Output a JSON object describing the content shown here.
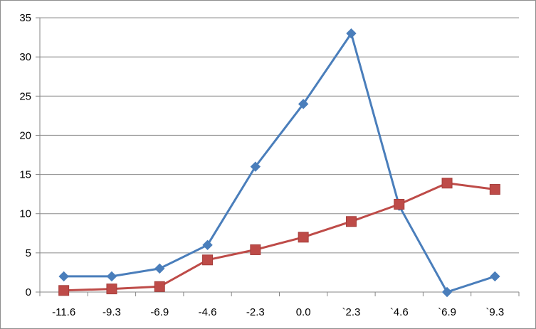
{
  "chart_data": {
    "type": "line",
    "title": "",
    "xlabel": "",
    "ylabel": "",
    "categories": [
      "-11.6",
      "-9.3",
      "-6.9",
      "-4.6",
      "-2.3",
      "0.0",
      "`2.3",
      "`4.6",
      "`6.9",
      "`9.3"
    ],
    "ylim": [
      0,
      35
    ],
    "yticks": [
      "0",
      "5",
      "10",
      "15",
      "20",
      "25",
      "30",
      "35"
    ],
    "grid": true,
    "legend": "none",
    "series": [
      {
        "color": "#4a7ebb",
        "marker": "diamond",
        "values": [
          2,
          2,
          3,
          6,
          16,
          24,
          33,
          11,
          0,
          2
        ]
      },
      {
        "color": "#be4b48",
        "marker": "square",
        "values": [
          0.2,
          0.4,
          0.7,
          4.1,
          5.4,
          7.0,
          9.0,
          11.2,
          13.9,
          13.1
        ]
      }
    ]
  }
}
